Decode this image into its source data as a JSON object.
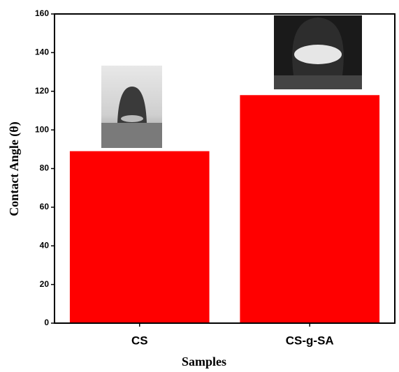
{
  "chart_data": {
    "type": "bar",
    "x_label": "Samples",
    "y_label": "Contact Angle (θ)",
    "categories": [
      "CS",
      "CS-g-SA"
    ],
    "values": [
      89,
      118
    ],
    "color": "#ff0000",
    "ylim": [
      0,
      160
    ],
    "yticks": [
      0,
      20,
      40,
      60,
      80,
      100,
      120,
      140,
      160
    ]
  }
}
